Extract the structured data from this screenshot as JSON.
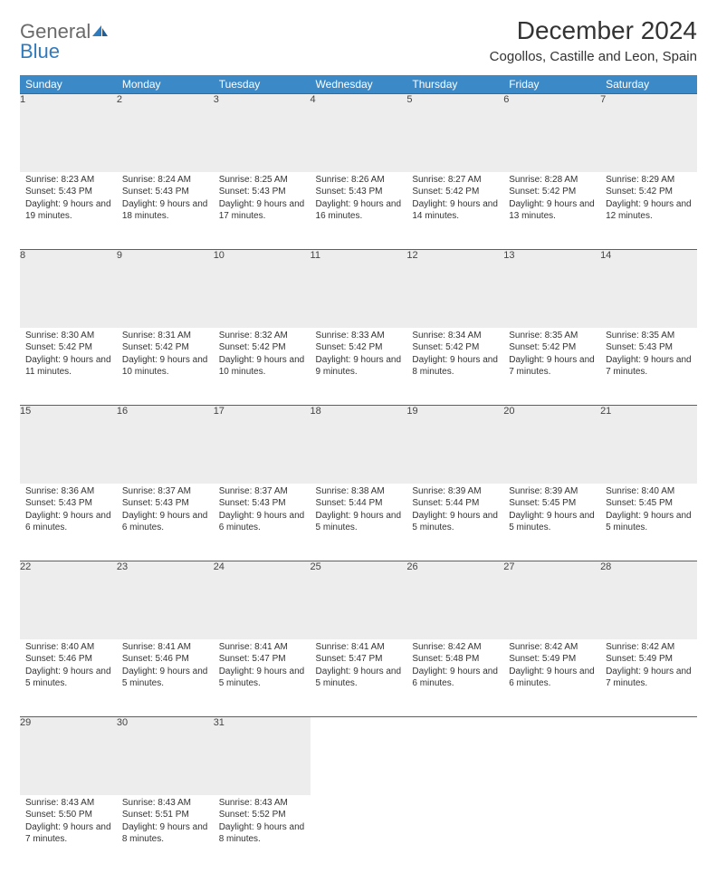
{
  "brand": {
    "general": "General",
    "blue": "Blue"
  },
  "title": "December 2024",
  "location": "Cogollos, Castille and Leon, Spain",
  "colors": {
    "header_bg": "#3b89c7",
    "header_text": "#ffffff",
    "rule": "#2b6ca3",
    "daynum_bg": "#ededed",
    "brand_gray": "#6a6a6a",
    "brand_blue": "#2f7bbf"
  },
  "weekdays": [
    "Sunday",
    "Monday",
    "Tuesday",
    "Wednesday",
    "Thursday",
    "Friday",
    "Saturday"
  ],
  "weeks": [
    [
      {
        "n": "1",
        "sr": "Sunrise: 8:23 AM",
        "ss": "Sunset: 5:43 PM",
        "dl": "Daylight: 9 hours and 19 minutes."
      },
      {
        "n": "2",
        "sr": "Sunrise: 8:24 AM",
        "ss": "Sunset: 5:43 PM",
        "dl": "Daylight: 9 hours and 18 minutes."
      },
      {
        "n": "3",
        "sr": "Sunrise: 8:25 AM",
        "ss": "Sunset: 5:43 PM",
        "dl": "Daylight: 9 hours and 17 minutes."
      },
      {
        "n": "4",
        "sr": "Sunrise: 8:26 AM",
        "ss": "Sunset: 5:43 PM",
        "dl": "Daylight: 9 hours and 16 minutes."
      },
      {
        "n": "5",
        "sr": "Sunrise: 8:27 AM",
        "ss": "Sunset: 5:42 PM",
        "dl": "Daylight: 9 hours and 14 minutes."
      },
      {
        "n": "6",
        "sr": "Sunrise: 8:28 AM",
        "ss": "Sunset: 5:42 PM",
        "dl": "Daylight: 9 hours and 13 minutes."
      },
      {
        "n": "7",
        "sr": "Sunrise: 8:29 AM",
        "ss": "Sunset: 5:42 PM",
        "dl": "Daylight: 9 hours and 12 minutes."
      }
    ],
    [
      {
        "n": "8",
        "sr": "Sunrise: 8:30 AM",
        "ss": "Sunset: 5:42 PM",
        "dl": "Daylight: 9 hours and 11 minutes."
      },
      {
        "n": "9",
        "sr": "Sunrise: 8:31 AM",
        "ss": "Sunset: 5:42 PM",
        "dl": "Daylight: 9 hours and 10 minutes."
      },
      {
        "n": "10",
        "sr": "Sunrise: 8:32 AM",
        "ss": "Sunset: 5:42 PM",
        "dl": "Daylight: 9 hours and 10 minutes."
      },
      {
        "n": "11",
        "sr": "Sunrise: 8:33 AM",
        "ss": "Sunset: 5:42 PM",
        "dl": "Daylight: 9 hours and 9 minutes."
      },
      {
        "n": "12",
        "sr": "Sunrise: 8:34 AM",
        "ss": "Sunset: 5:42 PM",
        "dl": "Daylight: 9 hours and 8 minutes."
      },
      {
        "n": "13",
        "sr": "Sunrise: 8:35 AM",
        "ss": "Sunset: 5:42 PM",
        "dl": "Daylight: 9 hours and 7 minutes."
      },
      {
        "n": "14",
        "sr": "Sunrise: 8:35 AM",
        "ss": "Sunset: 5:43 PM",
        "dl": "Daylight: 9 hours and 7 minutes."
      }
    ],
    [
      {
        "n": "15",
        "sr": "Sunrise: 8:36 AM",
        "ss": "Sunset: 5:43 PM",
        "dl": "Daylight: 9 hours and 6 minutes."
      },
      {
        "n": "16",
        "sr": "Sunrise: 8:37 AM",
        "ss": "Sunset: 5:43 PM",
        "dl": "Daylight: 9 hours and 6 minutes."
      },
      {
        "n": "17",
        "sr": "Sunrise: 8:37 AM",
        "ss": "Sunset: 5:43 PM",
        "dl": "Daylight: 9 hours and 6 minutes."
      },
      {
        "n": "18",
        "sr": "Sunrise: 8:38 AM",
        "ss": "Sunset: 5:44 PM",
        "dl": "Daylight: 9 hours and 5 minutes."
      },
      {
        "n": "19",
        "sr": "Sunrise: 8:39 AM",
        "ss": "Sunset: 5:44 PM",
        "dl": "Daylight: 9 hours and 5 minutes."
      },
      {
        "n": "20",
        "sr": "Sunrise: 8:39 AM",
        "ss": "Sunset: 5:45 PM",
        "dl": "Daylight: 9 hours and 5 minutes."
      },
      {
        "n": "21",
        "sr": "Sunrise: 8:40 AM",
        "ss": "Sunset: 5:45 PM",
        "dl": "Daylight: 9 hours and 5 minutes."
      }
    ],
    [
      {
        "n": "22",
        "sr": "Sunrise: 8:40 AM",
        "ss": "Sunset: 5:46 PM",
        "dl": "Daylight: 9 hours and 5 minutes."
      },
      {
        "n": "23",
        "sr": "Sunrise: 8:41 AM",
        "ss": "Sunset: 5:46 PM",
        "dl": "Daylight: 9 hours and 5 minutes."
      },
      {
        "n": "24",
        "sr": "Sunrise: 8:41 AM",
        "ss": "Sunset: 5:47 PM",
        "dl": "Daylight: 9 hours and 5 minutes."
      },
      {
        "n": "25",
        "sr": "Sunrise: 8:41 AM",
        "ss": "Sunset: 5:47 PM",
        "dl": "Daylight: 9 hours and 5 minutes."
      },
      {
        "n": "26",
        "sr": "Sunrise: 8:42 AM",
        "ss": "Sunset: 5:48 PM",
        "dl": "Daylight: 9 hours and 6 minutes."
      },
      {
        "n": "27",
        "sr": "Sunrise: 8:42 AM",
        "ss": "Sunset: 5:49 PM",
        "dl": "Daylight: 9 hours and 6 minutes."
      },
      {
        "n": "28",
        "sr": "Sunrise: 8:42 AM",
        "ss": "Sunset: 5:49 PM",
        "dl": "Daylight: 9 hours and 7 minutes."
      }
    ],
    [
      {
        "n": "29",
        "sr": "Sunrise: 8:43 AM",
        "ss": "Sunset: 5:50 PM",
        "dl": "Daylight: 9 hours and 7 minutes."
      },
      {
        "n": "30",
        "sr": "Sunrise: 8:43 AM",
        "ss": "Sunset: 5:51 PM",
        "dl": "Daylight: 9 hours and 8 minutes."
      },
      {
        "n": "31",
        "sr": "Sunrise: 8:43 AM",
        "ss": "Sunset: 5:52 PM",
        "dl": "Daylight: 9 hours and 8 minutes."
      },
      null,
      null,
      null,
      null
    ]
  ]
}
